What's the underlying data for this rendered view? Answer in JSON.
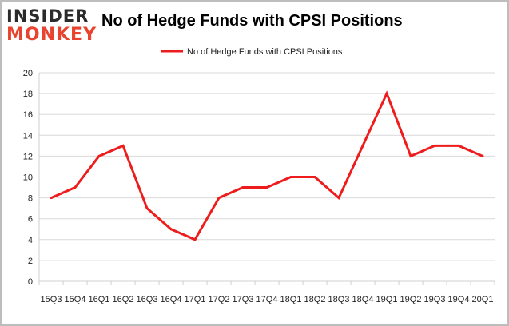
{
  "logo": {
    "line1": "INSIDER",
    "line2": "MONKEY"
  },
  "chart_data": {
    "type": "line",
    "title": "No of Hedge Funds with CPSI Positions",
    "xlabel": "",
    "ylabel": "",
    "categories": [
      "2015Q3",
      "2015Q4",
      "2016Q1",
      "2016Q2",
      "2016Q3",
      "2016Q4",
      "2017Q1",
      "2017Q2",
      "2017Q3",
      "2017Q4",
      "2018Q1",
      "2018Q2",
      "2018Q3",
      "2018Q4",
      "2019Q1",
      "2019Q2",
      "2019Q3",
      "2019Q4",
      "2020Q1"
    ],
    "x_tick_labels": [
      "15Q3",
      "15Q4",
      "16Q1",
      "16Q2",
      "16Q3",
      "16Q4",
      "17Q1",
      "17Q2",
      "17Q3",
      "17Q4",
      "18Q1",
      "18Q2",
      "18Q3",
      "18Q4",
      "19Q1",
      "19Q2",
      "19Q3",
      "19Q4",
      "20Q1"
    ],
    "series": [
      {
        "name": "No of Hedge Funds with CPSI Positions",
        "color": "#ee1c1c",
        "values": [
          8,
          9,
          12,
          13,
          7,
          5,
          4,
          8,
          9,
          9,
          10,
          10,
          8,
          13,
          18,
          12,
          13,
          13,
          12
        ]
      }
    ],
    "ylim": [
      0,
      20
    ],
    "y_ticks": [
      0,
      2,
      4,
      6,
      8,
      10,
      12,
      14,
      16,
      18,
      20
    ],
    "grid": true,
    "legend": "top-center"
  }
}
